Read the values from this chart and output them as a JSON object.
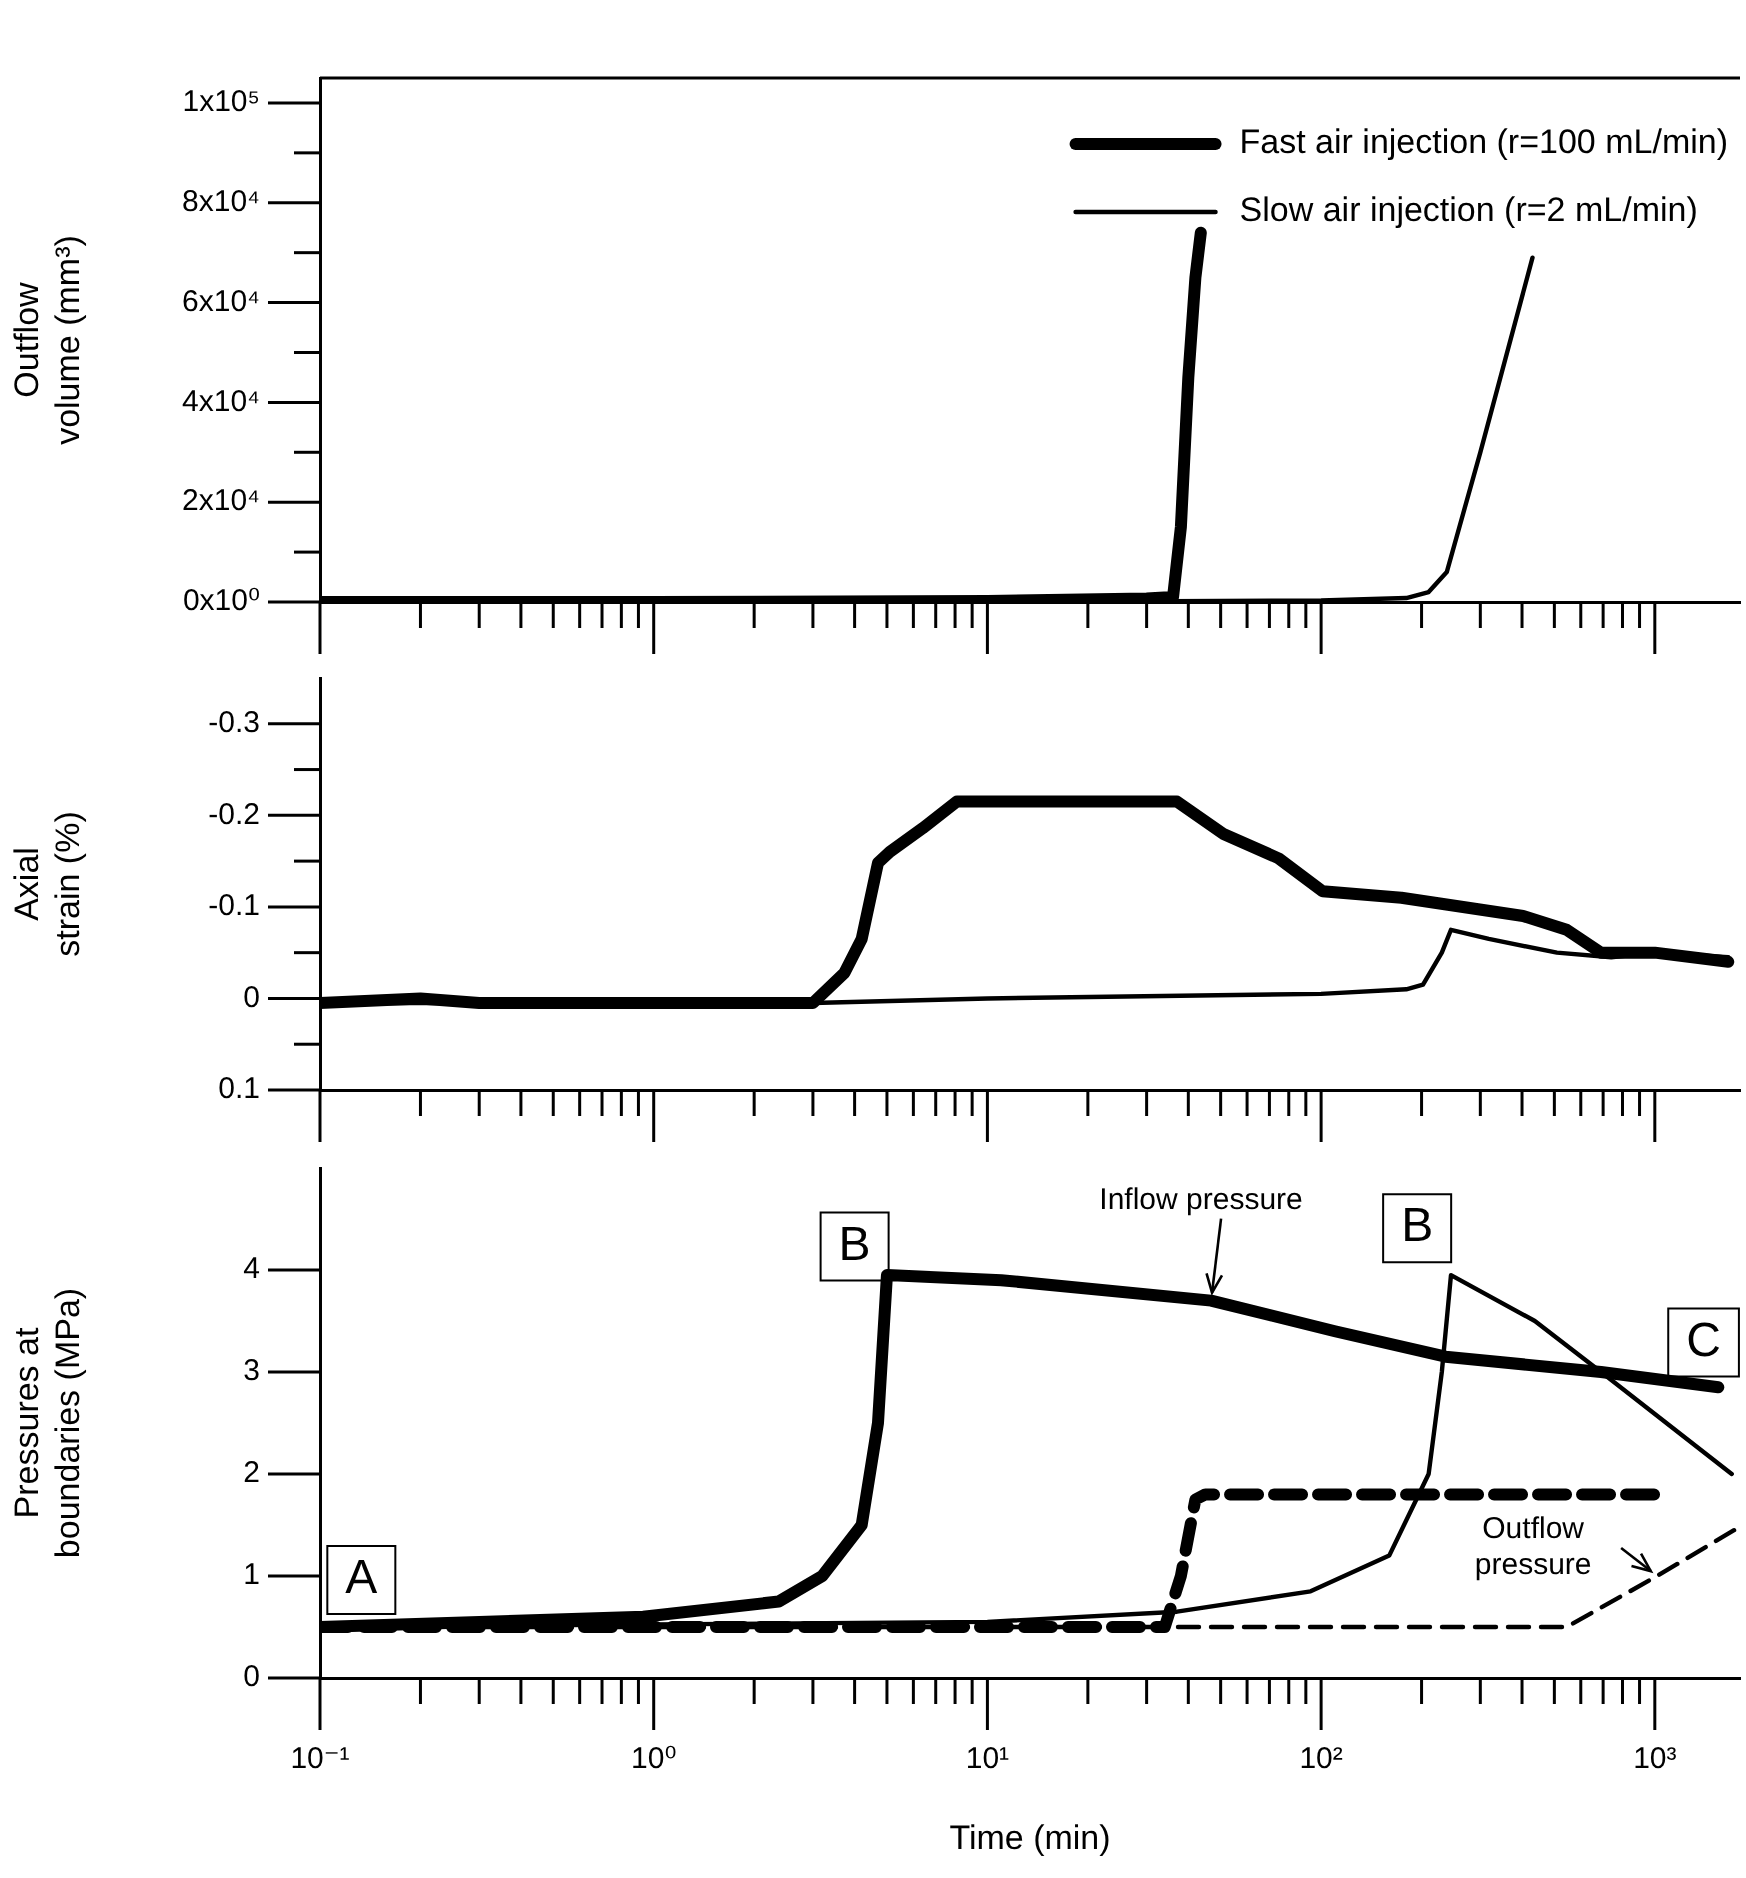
{
  "chart_data": [
    {
      "type": "line",
      "ylabel": "Outflow volume (mm³)",
      "log": "x",
      "xlim": [
        0.1,
        1800
      ],
      "xticks": [
        0.1,
        {
          "value": 0.2,
          "label": null
        },
        {
          "value": 0.3,
          "label": null
        },
        {
          "value": 0.4,
          "label": null
        },
        {
          "value": 0.5,
          "label": null
        },
        {
          "value": 0.6,
          "label": null
        },
        {
          "value": 0.7,
          "label": null
        },
        {
          "value": 0.8,
          "label": null
        },
        {
          "value": 0.9,
          "label": null
        },
        1,
        {
          "value": 2,
          "label": null
        },
        {
          "value": 3,
          "label": null
        },
        {
          "value": 4,
          "label": null
        },
        {
          "value": 5,
          "label": null
        },
        {
          "value": 6,
          "label": null
        },
        {
          "value": 7,
          "label": null
        },
        {
          "value": 8,
          "label": null
        },
        {
          "value": 9,
          "label": null
        },
        10,
        {
          "value": 20,
          "label": null
        },
        {
          "value": 30,
          "label": null
        },
        {
          "value": 40,
          "label": null
        },
        {
          "value": 50,
          "label": null
        },
        {
          "value": 60,
          "label": null
        },
        {
          "value": 70,
          "label": null
        },
        {
          "value": 80,
          "label": null
        },
        {
          "value": 90,
          "label": null
        },
        100,
        {
          "value": 200,
          "label": null
        },
        {
          "value": 300,
          "label": null
        },
        {
          "value": 400,
          "label": null
        },
        {
          "value": 500,
          "label": null
        },
        {
          "value": 600,
          "label": null
        },
        {
          "value": 700,
          "label": null
        },
        {
          "value": 800,
          "label": null
        },
        {
          "value": 900,
          "label": null
        },
        1000
      ],
      "ylim": [
        0,
        105000
      ],
      "yticks": [
        {
          "value": 0,
          "label": "0x10⁰"
        },
        {
          "value": 10000,
          "label": null
        },
        {
          "value": 20000,
          "label": "2x10⁴"
        },
        {
          "value": 30000,
          "label": null
        },
        {
          "value": 40000,
          "label": "4x10⁴"
        },
        {
          "value": 50000,
          "label": null
        },
        {
          "value": 60000,
          "label": "6x10⁴"
        },
        {
          "value": 70000,
          "label": null
        },
        {
          "value": 80000,
          "label": "8x10⁴"
        },
        {
          "value": 90000,
          "label": null
        },
        {
          "value": 100000,
          "label": "1x10⁵"
        }
      ],
      "tick_labels": "y",
      "grid": false,
      "legend": "top right",
      "marker": "none",
      "series": [
        {
          "name": "Fast air injection (r=100 mL/min)",
          "color": "#000000",
          "x": [
            0.1,
            1,
            10,
            30,
            36,
            38,
            40,
            42,
            43.6
          ],
          "values": [
            0,
            0,
            200,
            700,
            1000,
            15000,
            45000,
            65000,
            74000
          ]
        },
        {
          "name": "Slow air injection (r=2 mL/min)",
          "color": "#000000",
          "x": [
            0.1,
            10,
            100,
            180,
            210,
            238,
            300,
            430
          ],
          "values": [
            0,
            0,
            300,
            800,
            2000,
            6000,
            30000,
            69000
          ]
        }
      ]
    },
    {
      "type": "line",
      "ylabel": "Axial strain (%)",
      "log": "x",
      "xlim": [
        0.1,
        1800
      ],
      "xticks": [
        0.1,
        {
          "value": 0.2,
          "label": null
        },
        {
          "value": 0.3,
          "label": null
        },
        {
          "value": 0.4,
          "label": null
        },
        {
          "value": 0.5,
          "label": null
        },
        {
          "value": 0.6,
          "label": null
        },
        {
          "value": 0.7,
          "label": null
        },
        {
          "value": 0.8,
          "label": null
        },
        {
          "value": 0.9,
          "label": null
        },
        1,
        {
          "value": 2,
          "label": null
        },
        {
          "value": 3,
          "label": null
        },
        {
          "value": 4,
          "label": null
        },
        {
          "value": 5,
          "label": null
        },
        {
          "value": 6,
          "label": null
        },
        {
          "value": 7,
          "label": null
        },
        {
          "value": 8,
          "label": null
        },
        {
          "value": 9,
          "label": null
        },
        10,
        {
          "value": 20,
          "label": null
        },
        {
          "value": 30,
          "label": null
        },
        {
          "value": 40,
          "label": null
        },
        {
          "value": 50,
          "label": null
        },
        {
          "value": 60,
          "label": null
        },
        {
          "value": 70,
          "label": null
        },
        {
          "value": 80,
          "label": null
        },
        {
          "value": 90,
          "label": null
        },
        100,
        {
          "value": 200,
          "label": null
        },
        {
          "value": 300,
          "label": null
        },
        {
          "value": 400,
          "label": null
        },
        {
          "value": 500,
          "label": null
        },
        {
          "value": 600,
          "label": null
        },
        {
          "value": 700,
          "label": null
        },
        {
          "value": 800,
          "label": null
        },
        {
          "value": 900,
          "label": null
        },
        1000
      ],
      "ylim": [
        0.1,
        -0.35
      ],
      "yticks": [
        -0.3,
        {
          "value": -0.25,
          "label": null
        },
        -0.2,
        {
          "value": -0.15,
          "label": null
        },
        -0.1,
        {
          "value": -0.05,
          "label": null
        },
        0,
        {
          "value": 0.05,
          "label": null
        },
        0.1
      ],
      "tick_labels": "y",
      "grid": false,
      "marker": "none",
      "series": [
        {
          "color": "#000000",
          "x": [
            0.1,
            0.2,
            0.3,
            1,
            3,
            3.73,
            4.2,
            4.7,
            5.1,
            6.4,
            8.1,
            37,
            50.8,
            74.6,
            101,
            174,
            403,
            544,
            690,
            1000,
            1660
          ],
          "values": [
            0.005,
            0,
            0.005,
            0.005,
            0.005,
            -0.028,
            -0.065,
            -0.148,
            -0.16,
            -0.186,
            -0.215,
            -0.215,
            -0.18,
            -0.153,
            -0.117,
            -0.11,
            -0.09,
            -0.075,
            -0.05,
            -0.05,
            -0.04
          ]
        },
        {
          "color": "#000000",
          "x": [
            0.1,
            3,
            10,
            100,
            180,
            202,
            230,
            245,
            318,
            509,
            740,
            1000,
            1660
          ],
          "values": [
            0.005,
            0.005,
            0,
            -0.005,
            -0.01,
            -0.015,
            -0.05,
            -0.075,
            -0.065,
            -0.05,
            -0.045,
            -0.05,
            -0.045
          ]
        }
      ]
    },
    {
      "type": "line",
      "xlabel": "Time (min)",
      "ylabel": "Pressures at boundaries (MPa)",
      "log": "x",
      "xlim": [
        0.1,
        1800
      ],
      "xticks": [
        {
          "value": 0.1,
          "label": "10⁻¹"
        },
        {
          "value": 0.2,
          "label": null
        },
        {
          "value": 0.3,
          "label": null
        },
        {
          "value": 0.4,
          "label": null
        },
        {
          "value": 0.5,
          "label": null
        },
        {
          "value": 0.6,
          "label": null
        },
        {
          "value": 0.7,
          "label": null
        },
        {
          "value": 0.8,
          "label": null
        },
        {
          "value": 0.9,
          "label": null
        },
        {
          "value": 1,
          "label": "10⁰"
        },
        {
          "value": 2,
          "label": null
        },
        {
          "value": 3,
          "label": null
        },
        {
          "value": 4,
          "label": null
        },
        {
          "value": 5,
          "label": null
        },
        {
          "value": 6,
          "label": null
        },
        {
          "value": 7,
          "label": null
        },
        {
          "value": 8,
          "label": null
        },
        {
          "value": 9,
          "label": null
        },
        {
          "value": 10,
          "label": "10¹"
        },
        {
          "value": 20,
          "label": null
        },
        {
          "value": 30,
          "label": null
        },
        {
          "value": 40,
          "label": null
        },
        {
          "value": 50,
          "label": null
        },
        {
          "value": 60,
          "label": null
        },
        {
          "value": 70,
          "label": null
        },
        {
          "value": 80,
          "label": null
        },
        {
          "value": 90,
          "label": null
        },
        {
          "value": 100,
          "label": "10²"
        },
        {
          "value": 200,
          "label": null
        },
        {
          "value": 300,
          "label": null
        },
        {
          "value": 400,
          "label": null
        },
        {
          "value": 500,
          "label": null
        },
        {
          "value": 600,
          "label": null
        },
        {
          "value": 700,
          "label": null
        },
        {
          "value": 800,
          "label": null
        },
        {
          "value": 900,
          "label": null
        },
        {
          "value": 1000,
          "label": "10³"
        }
      ],
      "ylim": [
        0,
        5
      ],
      "yticks": [
        0,
        1,
        2,
        3,
        4
      ],
      "grid": false,
      "marker": "none",
      "series": [
        {
          "color": "#000000",
          "x": [
            0.1,
            0.3,
            0.93,
            2.37,
            3.2,
            4.2,
            4.7,
            5.0,
            11,
            46.8,
            110,
            236,
            690,
            1550
          ],
          "values": [
            0.5,
            0.55,
            0.6,
            0.75,
            1.0,
            1.5,
            2.5,
            3.95,
            3.9,
            3.7,
            3.4,
            3.15,
            3.0,
            2.85
          ]
        },
        {
          "color": "#000000",
          "x": [
            0.1,
            10,
            37,
            93,
            160,
            210,
            230,
            245,
            437,
            690,
            1700
          ],
          "values": [
            0.5,
            0.55,
            0.65,
            0.85,
            1.2,
            2.0,
            3.0,
            3.95,
            3.5,
            3.0,
            2.0
          ]
        },
        {
          "color": "#000000",
          "line_style": "dashed",
          "x": [
            0.1,
            34,
            38,
            42,
            45,
            1100
          ],
          "values": [
            0.5,
            0.5,
            1.0,
            1.75,
            1.8,
            1.8
          ]
        },
        {
          "color": "#000000",
          "line_style": "dashed",
          "x": [
            0.1,
            544,
            1016,
            1730
          ],
          "values": [
            0.5,
            0.5,
            1.0,
            1.45
          ]
        }
      ],
      "annotations": [
        {
          "text": "A",
          "x": 0.133,
          "y": 0.96
        },
        {
          "text": "B",
          "x": 4,
          "y": 4.23
        },
        {
          "text": "B",
          "x": 194,
          "y": 4.41
        },
        {
          "text": "C",
          "x": 1400,
          "y": 3.29
        },
        {
          "text": "Inflow pressure",
          "x": 46.8,
          "y": 3.7
        },
        {
          "text": "Outflow pressure",
          "x": 1016,
          "y": 1.0
        }
      ]
    }
  ]
}
